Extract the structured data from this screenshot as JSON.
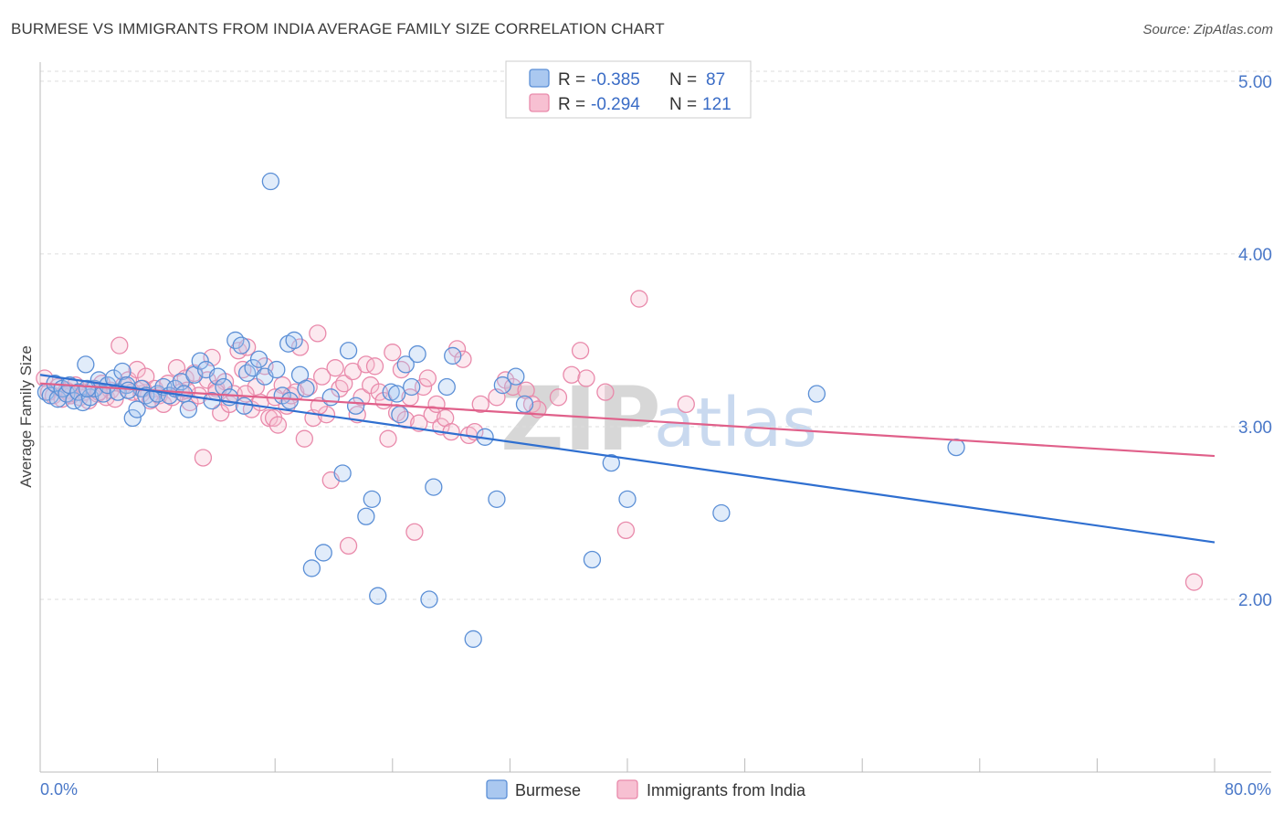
{
  "header": {
    "title": "BURMESE VS IMMIGRANTS FROM INDIA AVERAGE FAMILY SIZE CORRELATION CHART",
    "source": "Source: ZipAtlas.com"
  },
  "watermark": {
    "part1": "ZIP",
    "part2": "atlas"
  },
  "colors": {
    "burmese_fill": "#aac8f0",
    "burmese_stroke": "#5b8fd6",
    "burmese_line": "#2f6fd0",
    "india_fill": "#f7c0d2",
    "india_stroke": "#e98aab",
    "india_line": "#e0608a"
  },
  "legend_top": {
    "rows": [
      {
        "r_label": "R = ",
        "r_value": "-0.385",
        "n_label": "N = ",
        "n_value": "87"
      },
      {
        "r_label": "R = ",
        "r_value": "-0.294",
        "n_label": "N = ",
        "n_value": "121"
      }
    ]
  },
  "chart_data": {
    "type": "scatter",
    "xlabel": "",
    "ylabel": "Average Family Size",
    "xlim": [
      0,
      80
    ],
    "ylim": [
      1.0,
      5.1
    ],
    "x_tick_labels": [
      "0.0%",
      "80.0%"
    ],
    "y_ticks": [
      2.0,
      3.0,
      4.0,
      5.0
    ],
    "y_tick_labels": [
      "2.00",
      "3.00",
      "4.00",
      "5.00"
    ],
    "grid": true,
    "legend_position": "bottom",
    "series": [
      {
        "name": "Burmese",
        "trend": {
          "x": [
            0,
            80
          ],
          "y": [
            3.3,
            2.33
          ]
        },
        "points": [
          [
            0.4,
            3.2
          ],
          [
            0.7,
            3.18
          ],
          [
            1.0,
            3.25
          ],
          [
            1.2,
            3.16
          ],
          [
            1.5,
            3.22
          ],
          [
            1.8,
            3.19
          ],
          [
            2.0,
            3.24
          ],
          [
            2.3,
            3.15
          ],
          [
            2.6,
            3.2
          ],
          [
            2.9,
            3.14
          ],
          [
            3.1,
            3.36
          ],
          [
            3.4,
            3.17
          ],
          [
            3.7,
            3.22
          ],
          [
            4.0,
            3.27
          ],
          [
            4.3,
            3.19
          ],
          [
            4.6,
            3.24
          ],
          [
            5.0,
            3.28
          ],
          [
            5.3,
            3.2
          ],
          [
            5.6,
            3.32
          ],
          [
            5.9,
            3.24
          ],
          [
            6.3,
            3.05
          ],
          [
            6.6,
            3.1
          ],
          [
            6.9,
            3.22
          ],
          [
            7.2,
            3.18
          ],
          [
            7.6,
            3.16
          ],
          [
            8.0,
            3.19
          ],
          [
            8.4,
            3.23
          ],
          [
            8.8,
            3.18
          ],
          [
            9.2,
            3.22
          ],
          [
            9.6,
            3.26
          ],
          [
            10.1,
            3.1
          ],
          [
            10.5,
            3.3
          ],
          [
            10.9,
            3.38
          ],
          [
            11.3,
            3.33
          ],
          [
            11.7,
            3.15
          ],
          [
            12.1,
            3.29
          ],
          [
            12.5,
            3.23
          ],
          [
            12.9,
            3.17
          ],
          [
            13.3,
            3.5
          ],
          [
            13.7,
            3.47
          ],
          [
            14.1,
            3.31
          ],
          [
            14.5,
            3.34
          ],
          [
            14.9,
            3.39
          ],
          [
            15.3,
            3.29
          ],
          [
            15.7,
            4.42
          ],
          [
            16.1,
            3.33
          ],
          [
            16.5,
            3.18
          ],
          [
            16.9,
            3.48
          ],
          [
            17.3,
            3.5
          ],
          [
            17.7,
            3.3
          ],
          [
            18.1,
            3.22
          ],
          [
            18.5,
            2.18
          ],
          [
            19.3,
            2.27
          ],
          [
            19.8,
            3.17
          ],
          [
            20.6,
            2.73
          ],
          [
            21.0,
            3.44
          ],
          [
            22.2,
            2.48
          ],
          [
            22.6,
            2.58
          ],
          [
            23.0,
            2.02
          ],
          [
            23.9,
            3.2
          ],
          [
            24.3,
            3.19
          ],
          [
            24.9,
            3.36
          ],
          [
            25.3,
            3.23
          ],
          [
            25.7,
            3.42
          ],
          [
            26.5,
            2.0
          ],
          [
            26.8,
            2.65
          ],
          [
            27.7,
            3.23
          ],
          [
            28.1,
            3.41
          ],
          [
            29.5,
            1.77
          ],
          [
            30.3,
            2.94
          ],
          [
            31.1,
            2.58
          ],
          [
            31.5,
            3.24
          ],
          [
            32.4,
            3.29
          ],
          [
            37.6,
            2.23
          ],
          [
            38.9,
            2.79
          ],
          [
            40.0,
            2.58
          ],
          [
            46.4,
            2.5
          ],
          [
            52.9,
            3.19
          ],
          [
            62.4,
            2.88
          ],
          [
            33.0,
            3.13
          ],
          [
            3.2,
            3.22
          ],
          [
            6.0,
            3.21
          ],
          [
            9.8,
            3.19
          ],
          [
            13.9,
            3.12
          ],
          [
            17.0,
            3.15
          ],
          [
            21.5,
            3.12
          ],
          [
            24.5,
            3.07
          ]
        ]
      },
      {
        "name": "Immigrants from India",
        "trend": {
          "x": [
            0,
            80
          ],
          "y": [
            3.25,
            2.83
          ]
        },
        "points": [
          [
            0.3,
            3.28
          ],
          [
            0.6,
            3.2
          ],
          [
            0.9,
            3.18
          ],
          [
            1.2,
            3.23
          ],
          [
            1.5,
            3.16
          ],
          [
            1.8,
            3.21
          ],
          [
            2.1,
            3.18
          ],
          [
            2.4,
            3.24
          ],
          [
            2.7,
            3.17
          ],
          [
            3.0,
            3.2
          ],
          [
            3.3,
            3.15
          ],
          [
            3.6,
            3.22
          ],
          [
            3.9,
            3.19
          ],
          [
            4.2,
            3.25
          ],
          [
            4.5,
            3.17
          ],
          [
            4.8,
            3.21
          ],
          [
            5.1,
            3.16
          ],
          [
            5.4,
            3.47
          ],
          [
            5.7,
            3.24
          ],
          [
            6.0,
            3.27
          ],
          [
            6.3,
            3.2
          ],
          [
            6.6,
            3.33
          ],
          [
            6.9,
            3.19
          ],
          [
            7.2,
            3.29
          ],
          [
            7.5,
            3.15
          ],
          [
            7.8,
            3.22
          ],
          [
            8.1,
            3.18
          ],
          [
            8.4,
            3.13
          ],
          [
            8.7,
            3.25
          ],
          [
            9.0,
            3.17
          ],
          [
            9.3,
            3.34
          ],
          [
            9.6,
            3.2
          ],
          [
            9.9,
            3.28
          ],
          [
            10.2,
            3.14
          ],
          [
            10.5,
            3.31
          ],
          [
            10.8,
            3.18
          ],
          [
            11.1,
            2.82
          ],
          [
            11.4,
            3.27
          ],
          [
            11.7,
            3.4
          ],
          [
            12.0,
            3.22
          ],
          [
            12.3,
            3.08
          ],
          [
            12.6,
            3.26
          ],
          [
            12.9,
            3.13
          ],
          [
            13.2,
            3.19
          ],
          [
            13.5,
            3.44
          ],
          [
            13.8,
            3.33
          ],
          [
            14.1,
            3.46
          ],
          [
            14.4,
            3.1
          ],
          [
            14.7,
            3.23
          ],
          [
            15.0,
            3.14
          ],
          [
            15.3,
            3.35
          ],
          [
            15.6,
            3.05
          ],
          [
            15.9,
            3.05
          ],
          [
            16.2,
            3.01
          ],
          [
            16.5,
            3.24
          ],
          [
            16.8,
            3.12
          ],
          [
            17.1,
            3.18
          ],
          [
            17.4,
            3.2
          ],
          [
            17.7,
            3.46
          ],
          [
            18.0,
            2.93
          ],
          [
            18.3,
            3.23
          ],
          [
            18.6,
            3.05
          ],
          [
            18.9,
            3.54
          ],
          [
            19.2,
            3.29
          ],
          [
            19.5,
            3.07
          ],
          [
            19.8,
            2.69
          ],
          [
            20.1,
            3.34
          ],
          [
            20.4,
            3.22
          ],
          [
            20.7,
            3.25
          ],
          [
            21.0,
            2.31
          ],
          [
            21.3,
            3.32
          ],
          [
            21.6,
            3.07
          ],
          [
            21.9,
            3.17
          ],
          [
            22.2,
            3.36
          ],
          [
            22.5,
            3.24
          ],
          [
            22.8,
            3.35
          ],
          [
            23.1,
            3.2
          ],
          [
            23.4,
            3.15
          ],
          [
            23.7,
            2.93
          ],
          [
            24.0,
            3.43
          ],
          [
            24.3,
            3.08
          ],
          [
            24.6,
            3.33
          ],
          [
            24.9,
            3.04
          ],
          [
            25.2,
            3.17
          ],
          [
            25.5,
            2.39
          ],
          [
            25.8,
            3.02
          ],
          [
            26.1,
            3.23
          ],
          [
            26.4,
            3.28
          ],
          [
            26.7,
            3.07
          ],
          [
            27.0,
            3.13
          ],
          [
            27.3,
            3.0
          ],
          [
            27.6,
            3.05
          ],
          [
            28.0,
            2.97
          ],
          [
            28.4,
            3.45
          ],
          [
            28.8,
            3.39
          ],
          [
            29.2,
            2.95
          ],
          [
            29.6,
            2.97
          ],
          [
            30.0,
            3.13
          ],
          [
            31.1,
            3.17
          ],
          [
            31.7,
            3.27
          ],
          [
            32.2,
            3.23
          ],
          [
            33.1,
            3.21
          ],
          [
            33.5,
            3.13
          ],
          [
            33.9,
            3.1
          ],
          [
            35.3,
            3.17
          ],
          [
            36.2,
            3.3
          ],
          [
            36.8,
            3.44
          ],
          [
            37.2,
            3.28
          ],
          [
            38.5,
            3.2
          ],
          [
            39.9,
            2.4
          ],
          [
            40.8,
            3.74
          ],
          [
            44.0,
            3.13
          ],
          [
            78.6,
            2.1
          ],
          [
            2.0,
            3.19
          ],
          [
            4.0,
            3.2
          ],
          [
            7.0,
            3.22
          ],
          [
            10.0,
            3.21
          ],
          [
            12.0,
            3.2
          ],
          [
            14.0,
            3.19
          ],
          [
            16.0,
            3.17
          ],
          [
            19.0,
            3.12
          ]
        ]
      }
    ]
  },
  "legend_bottom": {
    "items": [
      "Burmese",
      "Immigrants from India"
    ]
  }
}
